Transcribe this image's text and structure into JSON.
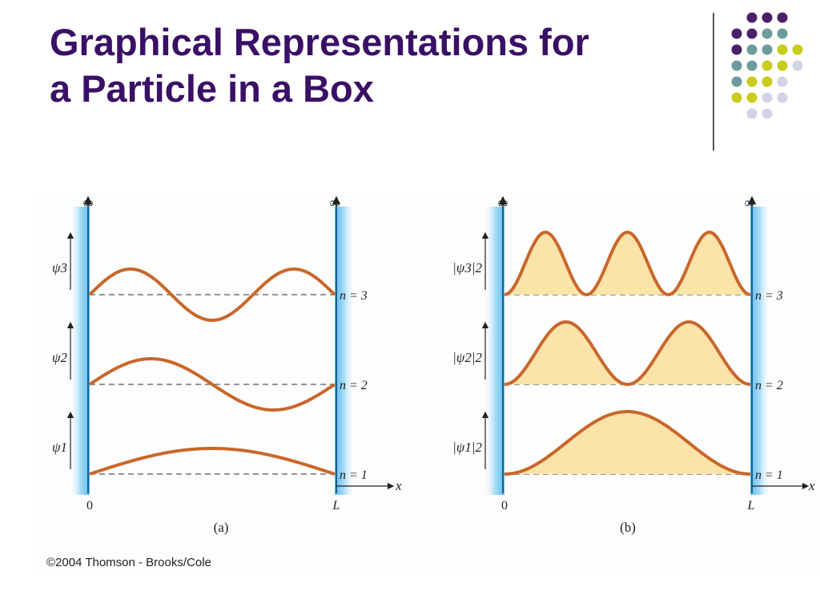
{
  "slide": {
    "title_line1": "Graphical Representations for",
    "title_line2": "a Particle in a Box",
    "copyright": "©2004 Thomson - Brooks/Cole"
  },
  "colors": {
    "title": "#3a0f66",
    "curve": "#c8672a",
    "fill": "#fbe3aa",
    "wall": "#4fb8ee",
    "dot_purple": "#4b1f6b",
    "dot_teal": "#6b9b9b",
    "dot_yellow": "#c8cc1a",
    "dot_lavender": "#d3d3e6"
  },
  "decor_dot_colors": [
    [
      "purple",
      "purple",
      "purple"
    ],
    [
      "purple",
      "purple",
      "teal",
      "teal"
    ],
    [
      "purple",
      "teal",
      "teal",
      "yellow",
      "yellow"
    ],
    [
      "teal",
      "teal",
      "yellow",
      "yellow",
      "lavender"
    ],
    [
      "teal",
      "yellow",
      "yellow",
      "lavender"
    ],
    [
      "yellow",
      "yellow",
      "lavender",
      "lavender"
    ],
    [
      "lavender",
      "lavender"
    ]
  ],
  "panel_a": {
    "caption": "(a)",
    "infinity_left": "∞",
    "infinity_right": "∞",
    "x_axis": "x",
    "origin": "0",
    "length": "L",
    "levels": [
      {
        "n": 3,
        "y_label": "ψ3",
        "n_label": "n = 3"
      },
      {
        "n": 2,
        "y_label": "ψ2",
        "n_label": "n = 2"
      },
      {
        "n": 1,
        "y_label": "ψ1",
        "n_label": "n = 1"
      }
    ]
  },
  "panel_b": {
    "caption": "(b)",
    "infinity_left": "∞",
    "infinity_right": "∞",
    "x_axis": "x",
    "origin": "0",
    "length": "L",
    "levels": [
      {
        "n": 3,
        "y_label": "|ψ3|2",
        "n_label": "n = 3"
      },
      {
        "n": 2,
        "y_label": "|ψ2|2",
        "n_label": "n = 2"
      },
      {
        "n": 1,
        "y_label": "|ψ1|2",
        "n_label": "n = 1"
      }
    ]
  }
}
